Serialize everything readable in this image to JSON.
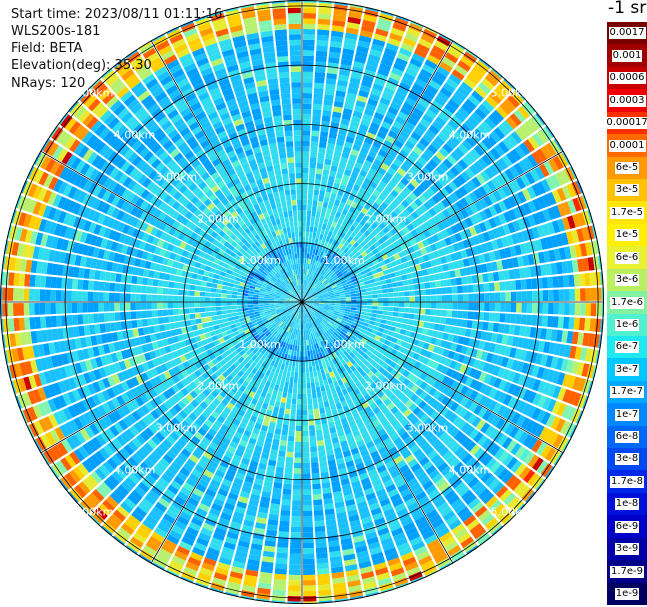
{
  "info": {
    "start_time": "Start time: 2023/08/11 01:11:16",
    "instrument": "WLS200s-181",
    "field": "Field: BETA",
    "elevation": "Elevation(deg): 35.30",
    "nrays": "NRays: 120"
  },
  "colorbar": {
    "unit_title": "-1 sr",
    "labels": [
      "0.0017",
      "0.001",
      "0.0006",
      "0.0003",
      "0.00017",
      "0.0001",
      "6e-5",
      "3e-5",
      "1.7e-5",
      "1e-5",
      "6e-6",
      "3e-6",
      "1.7e-6",
      "1e-6",
      "6e-7",
      "3e-7",
      "1.7e-7",
      "1e-7",
      "6e-8",
      "3e-8",
      "1.7e-8",
      "1e-8",
      "6e-9",
      "3e-9",
      "1.7e-9",
      "1e-9"
    ],
    "colors": [
      "#7a0000",
      "#a00000",
      "#c80000",
      "#f00000",
      "#ff3000",
      "#ff6a00",
      "#ff9a00",
      "#ffc200",
      "#ffe600",
      "#fff000",
      "#e8f230",
      "#b8f060",
      "#80f2a0",
      "#50f0d0",
      "#20e8f0",
      "#00c8ff",
      "#00a8ff",
      "#0088ff",
      "#0068f8",
      "#0048f0",
      "#0028e8",
      "#0010d8",
      "#0000c8",
      "#0000a8",
      "#000088",
      "#000060"
    ]
  },
  "ring_labels": [
    "1.00km",
    "2.00km",
    "3.00km",
    "4.00km",
    "5.00km"
  ],
  "plot": {
    "rings_km": [
      1,
      2,
      3,
      4,
      5
    ],
    "max_range_km": 5.1,
    "nrays": 120
  }
}
